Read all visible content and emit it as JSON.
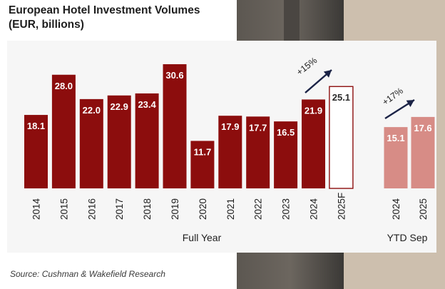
{
  "title_line1": "European Hotel Investment Volumes",
  "title_line2": "(EUR, billions)",
  "source": "Source: Cushman & Wakefield Research",
  "colors": {
    "full_year": "#8c0d0d",
    "ytd": "#d78c86",
    "forecast_border": "#8c0d0d",
    "arrow": "#1b2346"
  },
  "chart_data": {
    "type": "bar",
    "groups": [
      {
        "label": "Full Year",
        "categories": [
          "2014",
          "2015",
          "2016",
          "2017",
          "2018",
          "2019",
          "2020",
          "2021",
          "2022",
          "2023",
          "2024",
          "2025F"
        ],
        "values": [
          18.1,
          28.0,
          22.0,
          22.9,
          23.4,
          30.6,
          11.7,
          17.9,
          17.7,
          16.5,
          21.9,
          25.1
        ],
        "labels": [
          "18.1",
          "28.0",
          "22.0",
          "22.9",
          "23.4",
          "30.6",
          "11.7",
          "17.9",
          "17.7",
          "16.5",
          "21.9",
          "25.1"
        ],
        "forecast_index": 11
      },
      {
        "label": "YTD Sep",
        "categories": [
          "2024",
          "2025"
        ],
        "values": [
          15.1,
          17.6
        ],
        "labels": [
          "15.1",
          "17.6"
        ]
      }
    ],
    "annotations": [
      "+15%",
      "+17%"
    ],
    "ylim": [
      0,
      32
    ]
  }
}
